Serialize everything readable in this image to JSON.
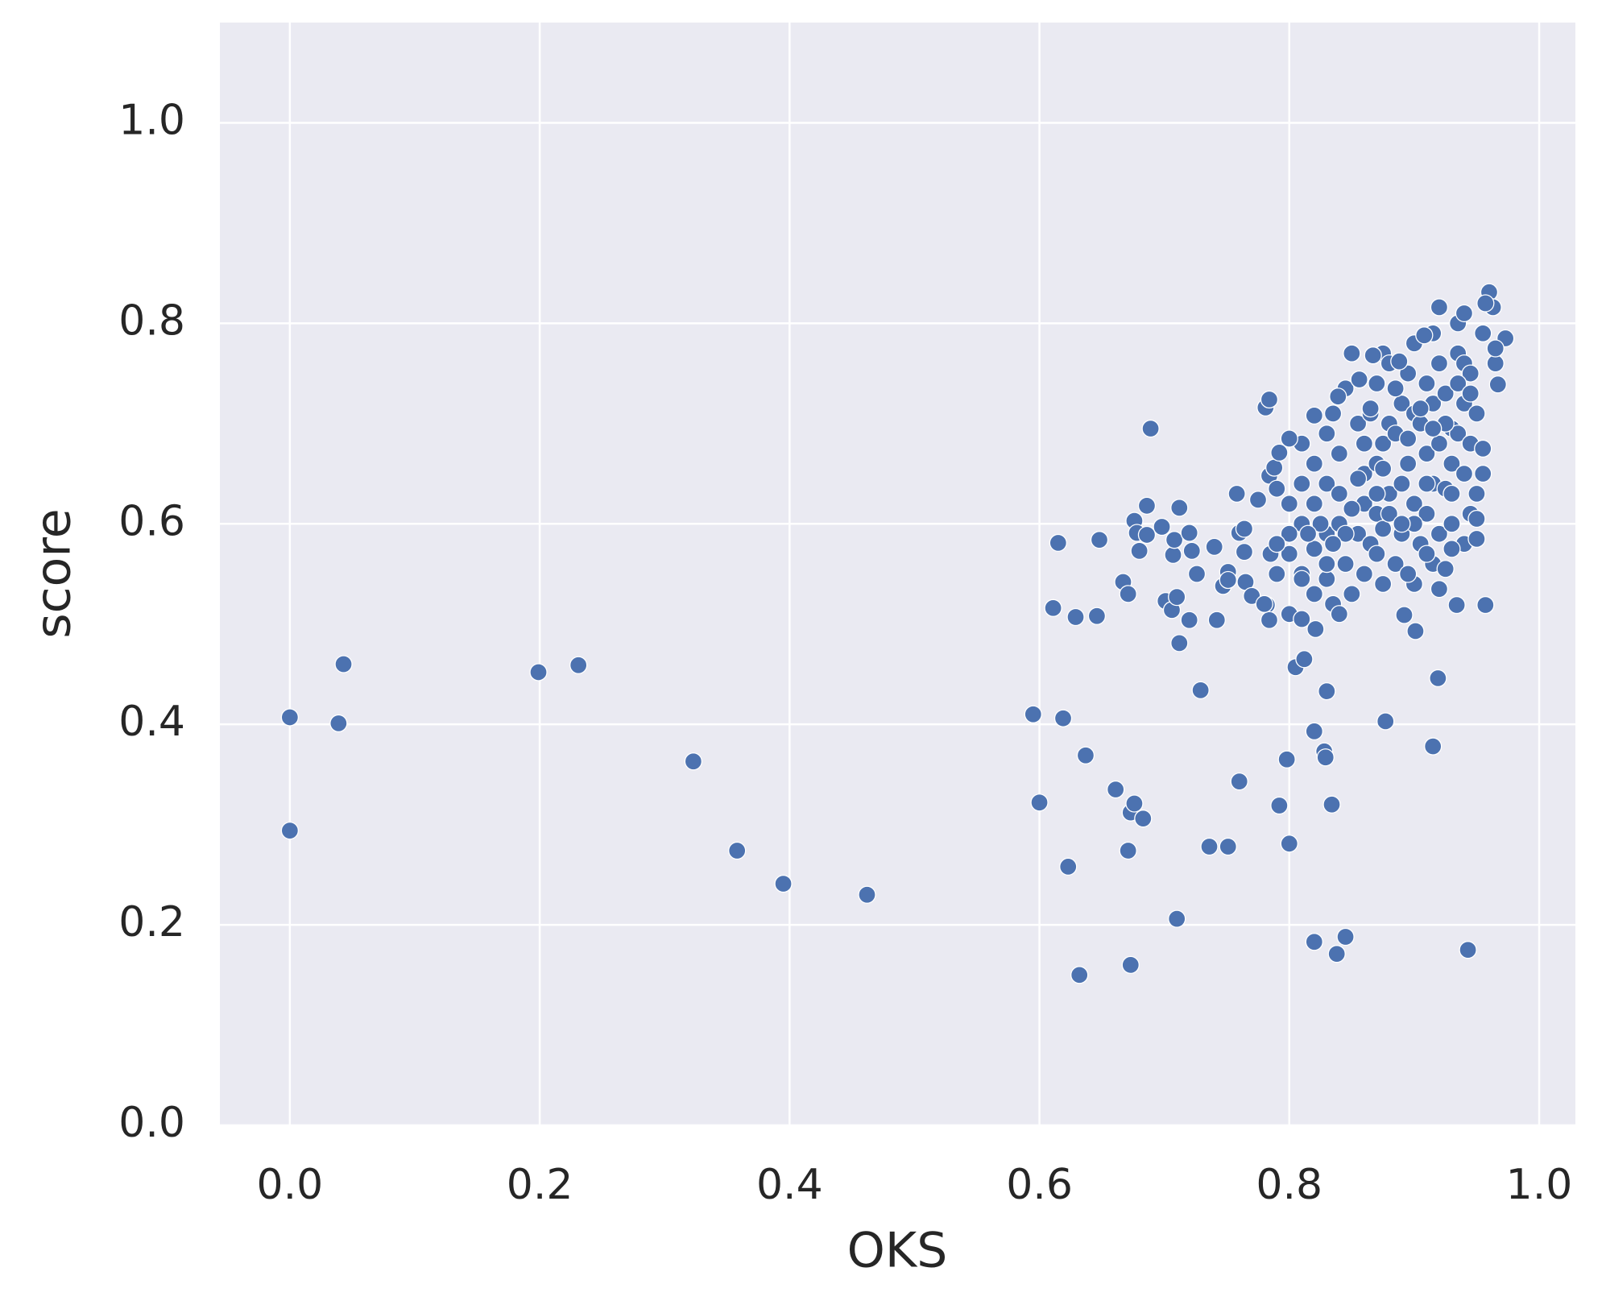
{
  "chart_data": {
    "type": "scatter",
    "xlabel": "OKS",
    "ylabel": "score",
    "color": "#4c72b0",
    "edgecolor": "#ffffff",
    "background": "#eaeaf2",
    "grid": true,
    "xlim": [
      -0.056,
      1.029
    ],
    "ylim": [
      0,
      1.1
    ],
    "xticks": [
      {
        "value": 0,
        "label": "0.0"
      },
      0.2,
      0.4,
      0.6,
      0.8,
      {
        "value": 1,
        "label": "1.0"
      }
    ],
    "yticks": [
      {
        "value": 0,
        "label": "0.0"
      },
      0.2,
      0.4,
      0.6,
      0.8,
      {
        "value": 1,
        "label": "1.0"
      }
    ],
    "x": [
      0.0,
      0.0,
      0.039,
      0.043,
      0.199,
      0.231,
      0.323,
      0.358,
      0.395,
      0.462,
      0.595,
      0.6,
      0.619,
      0.623,
      0.632,
      0.637,
      0.661,
      0.671,
      0.673,
      0.676,
      0.683,
      0.673,
      0.71,
      0.729,
      0.736,
      0.751,
      0.76,
      0.798,
      0.792,
      0.8,
      0.805,
      0.812,
      0.82,
      0.82,
      0.828,
      0.829,
      0.83,
      0.834,
      0.845,
      0.838,
      0.877,
      0.915,
      0.919,
      0.943,
      0.934,
      0.957,
      0.901,
      0.892,
      0.821,
      0.712,
      0.615,
      0.611,
      0.629,
      0.646,
      0.648,
      0.667,
      0.671,
      0.676,
      0.678,
      0.68,
      0.686,
      0.689,
      0.686,
      0.698,
      0.701,
      0.706,
      0.707,
      0.71,
      0.712,
      0.708,
      0.72,
      0.722,
      0.72,
      0.726,
      0.742,
      0.74,
      0.747,
      0.751,
      0.751,
      0.758,
      0.76,
      0.764,
      0.764,
      0.765,
      0.77,
      0.775,
      0.781,
      0.784,
      0.782,
      0.784,
      0.784,
      0.788,
      0.792,
      0.8,
      0.81,
      0.8,
      0.81,
      0.82,
      0.8,
      0.81,
      0.82,
      0.83,
      0.83,
      0.82,
      0.81,
      0.8,
      0.83,
      0.835,
      0.84,
      0.845,
      0.84,
      0.84,
      0.835,
      0.83,
      0.845,
      0.85,
      0.855,
      0.86,
      0.86,
      0.855,
      0.85,
      0.86,
      0.865,
      0.87,
      0.87,
      0.865,
      0.87,
      0.875,
      0.88,
      0.88,
      0.875,
      0.88,
      0.875,
      0.875,
      0.885,
      0.89,
      0.89,
      0.885,
      0.89,
      0.895,
      0.9,
      0.9,
      0.895,
      0.9,
      0.9,
      0.905,
      0.91,
      0.91,
      0.905,
      0.91,
      0.915,
      0.92,
      0.92,
      0.915,
      0.92,
      0.915,
      0.92,
      0.915,
      0.92,
      0.925,
      0.93,
      0.925,
      0.93,
      0.93,
      0.925,
      0.935,
      0.935,
      0.94,
      0.94,
      0.94,
      0.935,
      0.94,
      0.945,
      0.94,
      0.95,
      0.95,
      0.955,
      0.945,
      0.955,
      0.95,
      0.945,
      0.955,
      0.96,
      0.963,
      0.965,
      0.967,
      0.973,
      0.965,
      0.957,
      0.908,
      0.888,
      0.867,
      0.856,
      0.839,
      0.82,
      0.95,
      0.9,
      0.88,
      0.86,
      0.84,
      0.82,
      0.81,
      0.79,
      0.8,
      0.79,
      0.785,
      0.78,
      0.79,
      0.81,
      0.83,
      0.85,
      0.87,
      0.89,
      0.91,
      0.93,
      0.925,
      0.905,
      0.885,
      0.865,
      0.845,
      0.825,
      0.815,
      0.835,
      0.855,
      0.875,
      0.895,
      0.915,
      0.935,
      0.945,
      0.93,
      0.91,
      0.895,
      0.87
    ],
    "values": [
      0.407,
      0.294,
      0.401,
      0.46,
      0.452,
      0.459,
      0.363,
      0.274,
      0.241,
      0.23,
      0.41,
      0.322,
      0.406,
      0.258,
      0.15,
      0.369,
      0.335,
      0.274,
      0.312,
      0.321,
      0.306,
      0.16,
      0.206,
      0.434,
      0.278,
      0.278,
      0.343,
      0.365,
      0.319,
      0.281,
      0.457,
      0.465,
      0.393,
      0.183,
      0.373,
      0.367,
      0.433,
      0.32,
      0.188,
      0.171,
      0.403,
      0.378,
      0.446,
      0.175,
      0.519,
      0.519,
      0.493,
      0.509,
      0.495,
      0.481,
      0.581,
      0.516,
      0.507,
      0.508,
      0.584,
      0.542,
      0.53,
      0.603,
      0.591,
      0.573,
      0.618,
      0.695,
      0.589,
      0.597,
      0.523,
      0.514,
      0.569,
      0.527,
      0.616,
      0.584,
      0.591,
      0.573,
      0.504,
      0.55,
      0.504,
      0.577,
      0.538,
      0.552,
      0.544,
      0.63,
      0.591,
      0.572,
      0.595,
      0.542,
      0.528,
      0.624,
      0.716,
      0.724,
      0.519,
      0.504,
      0.648,
      0.656,
      0.671,
      0.62,
      0.6,
      0.57,
      0.55,
      0.53,
      0.51,
      0.505,
      0.575,
      0.59,
      0.64,
      0.66,
      0.68,
      0.685,
      0.545,
      0.52,
      0.51,
      0.56,
      0.6,
      0.67,
      0.71,
      0.69,
      0.735,
      0.77,
      0.7,
      0.65,
      0.62,
      0.59,
      0.53,
      0.55,
      0.58,
      0.61,
      0.66,
      0.71,
      0.74,
      0.77,
      0.76,
      0.7,
      0.68,
      0.63,
      0.595,
      0.54,
      0.56,
      0.59,
      0.64,
      0.69,
      0.72,
      0.75,
      0.78,
      0.71,
      0.66,
      0.62,
      0.54,
      0.58,
      0.61,
      0.67,
      0.7,
      0.74,
      0.79,
      0.816,
      0.76,
      0.72,
      0.68,
      0.64,
      0.59,
      0.56,
      0.535,
      0.555,
      0.6,
      0.635,
      0.66,
      0.695,
      0.73,
      0.77,
      0.8,
      0.81,
      0.76,
      0.72,
      0.69,
      0.65,
      0.61,
      0.58,
      0.585,
      0.63,
      0.65,
      0.68,
      0.675,
      0.71,
      0.75,
      0.79,
      0.831,
      0.816,
      0.76,
      0.739,
      0.785,
      0.775,
      0.82,
      0.788,
      0.762,
      0.768,
      0.744,
      0.727,
      0.708,
      0.605,
      0.6,
      0.61,
      0.68,
      0.63,
      0.62,
      0.64,
      0.635,
      0.59,
      0.55,
      0.57,
      0.52,
      0.58,
      0.545,
      0.56,
      0.615,
      0.63,
      0.6,
      0.64,
      0.63,
      0.7,
      0.715,
      0.735,
      0.715,
      0.59,
      0.6,
      0.59,
      0.58,
      0.645,
      0.655,
      0.685,
      0.695,
      0.74,
      0.73,
      0.575,
      0.57,
      0.55,
      0.57
    ]
  }
}
